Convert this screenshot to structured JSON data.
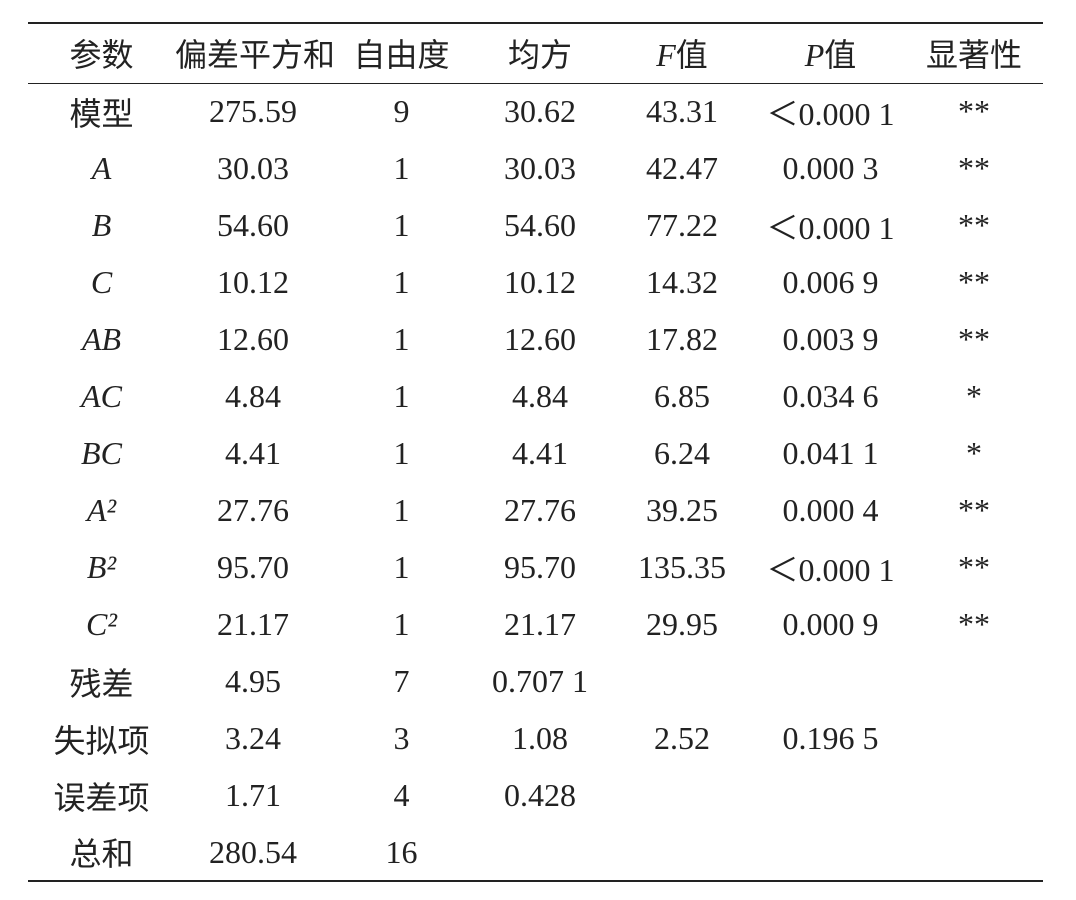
{
  "table": {
    "header": [
      "参数",
      "偏差平方和",
      "自由度",
      "均方",
      "F值",
      "P值",
      "显著性"
    ],
    "rows": [
      [
        "模型",
        "275.59",
        "9",
        "30.62",
        "43.31",
        "＜0.000 1",
        "**"
      ],
      [
        "A",
        "30.03",
        "1",
        "30.03",
        "42.47",
        "0.000 3",
        "**"
      ],
      [
        "B",
        "54.60",
        "1",
        "54.60",
        "77.22",
        "＜0.000 1",
        "**"
      ],
      [
        "C",
        "10.12",
        "1",
        "10.12",
        "14.32",
        "0.006 9",
        "**"
      ],
      [
        "AB",
        "12.60",
        "1",
        "12.60",
        "17.82",
        "0.003 9",
        "**"
      ],
      [
        "AC",
        "4.84",
        "1",
        "4.84",
        "6.85",
        "0.034 6",
        "*"
      ],
      [
        "BC",
        "4.41",
        "1",
        "4.41",
        "6.24",
        "0.041 1",
        "*"
      ],
      [
        "A²",
        "27.76",
        "1",
        "27.76",
        "39.25",
        "0.000 4",
        "**"
      ],
      [
        "B²",
        "95.70",
        "1",
        "95.70",
        "135.35",
        "＜0.000 1",
        "**"
      ],
      [
        "C²",
        "21.17",
        "1",
        "21.17",
        "29.95",
        "0.000 9",
        "**"
      ],
      [
        "残差",
        "4.95",
        "7",
        "0.707 1"
      ],
      [
        "失拟项",
        "3.24",
        "3",
        "1.08",
        "2.52",
        "0.196 5"
      ],
      [
        "误差项",
        "1.71",
        "4",
        "0.428"
      ],
      [
        "总和",
        "280.54",
        "16"
      ]
    ]
  }
}
